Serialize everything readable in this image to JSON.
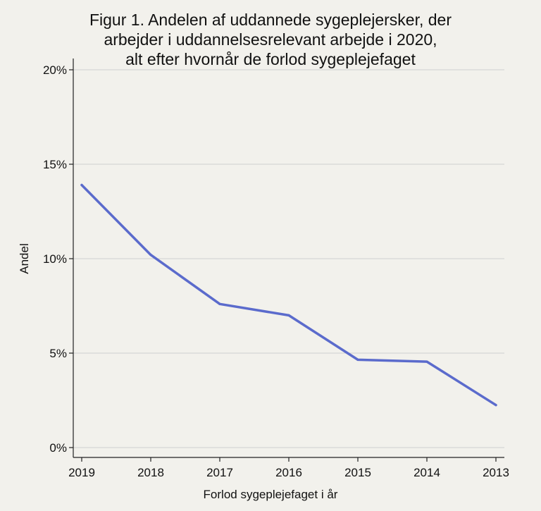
{
  "chart_data": {
    "type": "line",
    "title_lines": [
      "Figur 1. Andelen af uddannede sygeplejersker, der",
      "arbejder i uddannelsesrelevant arbejde i 2020,",
      "alt efter hvornår de forlod sygeplejefaget"
    ],
    "xlabel": "Forlod sygeplejefaget i år",
    "ylabel": "Andel",
    "categories": [
      "2019",
      "2018",
      "2017",
      "2016",
      "2015",
      "2014",
      "2013"
    ],
    "series": [
      {
        "values": [
          13.9,
          10.2,
          7.6,
          7.0,
          4.65,
          4.55,
          2.25
        ],
        "color": "#5b6bcc"
      }
    ],
    "ylim": [
      0,
      20
    ],
    "yticks": [
      0,
      5,
      10,
      15,
      20
    ],
    "ytick_labels": [
      "0%",
      "5%",
      "10%",
      "15%",
      "20%"
    ],
    "grid": true,
    "background": "#f2f1ec"
  }
}
